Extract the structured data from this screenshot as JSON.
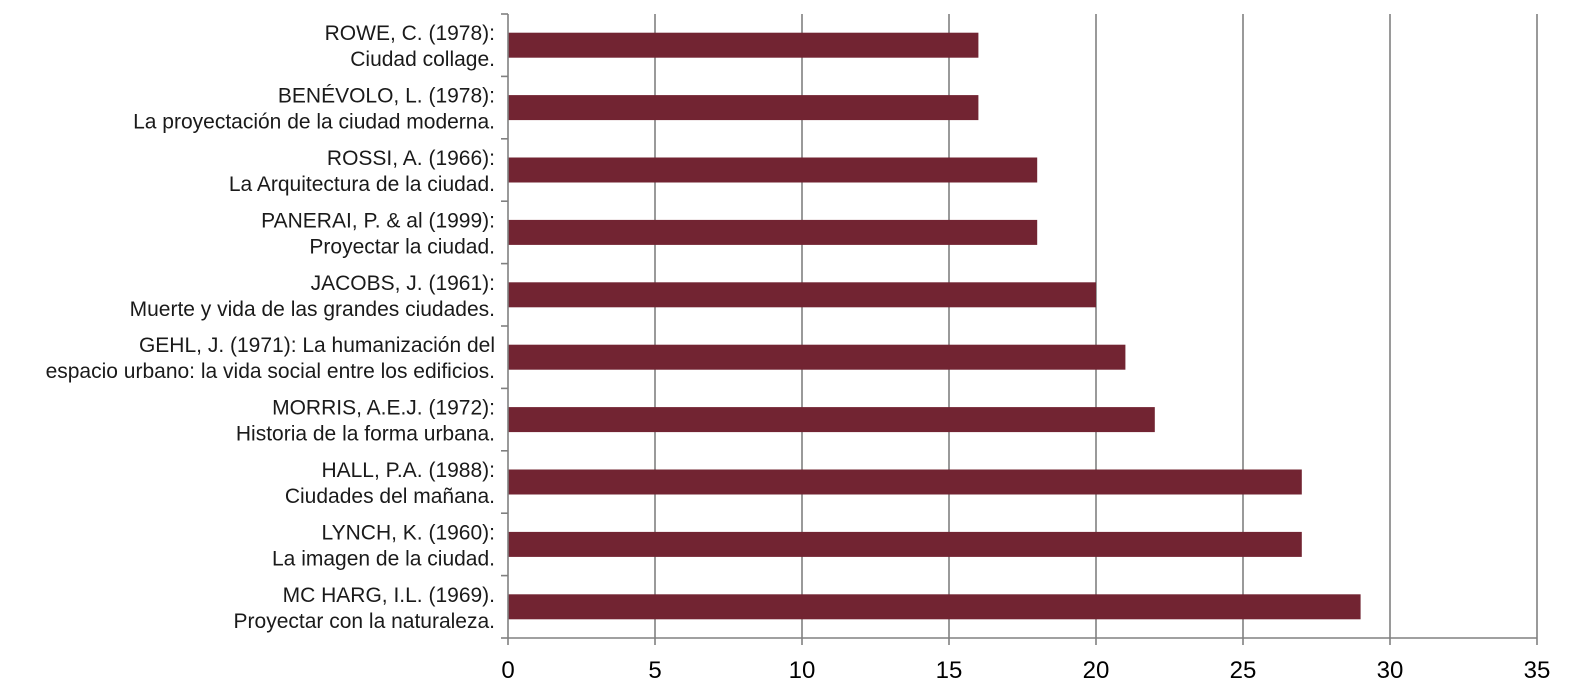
{
  "chart_data": {
    "type": "bar",
    "orientation": "horizontal",
    "categories": [
      [
        "ROWE, C. (1978):",
        "Ciudad collage."
      ],
      [
        "BENÉVOLO, L. (1978):",
        "La proyectación de la ciudad moderna."
      ],
      [
        "ROSSI, A. (1966):",
        "La Arquitectura de la ciudad."
      ],
      [
        "PANERAI, P. & al (1999):",
        "Proyectar la ciudad."
      ],
      [
        "JACOBS, J. (1961):",
        "Muerte y vida de las grandes ciudades."
      ],
      [
        "GEHL, J. (1971): La humanización del",
        "espacio urbano: la vida social entre los edificios."
      ],
      [
        "MORRIS, A.E.J. (1972):",
        "Historia de la forma urbana."
      ],
      [
        "HALL, P.A. (1988):",
        "Ciudades del mañana."
      ],
      [
        "LYNCH, K. (1960):",
        "La imagen de la ciudad."
      ],
      [
        "MC HARG, I.L. (1969).",
        "Proyectar con la naturaleza."
      ]
    ],
    "values": [
      16,
      16,
      18,
      18,
      20,
      21,
      22,
      27,
      27,
      29
    ],
    "xlim": [
      0,
      35
    ],
    "xticks": [
      "0",
      "5",
      "10",
      "15",
      "20",
      "25",
      "30",
      "35"
    ],
    "bar_color": "#722432",
    "grid": true,
    "title": "",
    "xlabel": "",
    "ylabel": ""
  }
}
